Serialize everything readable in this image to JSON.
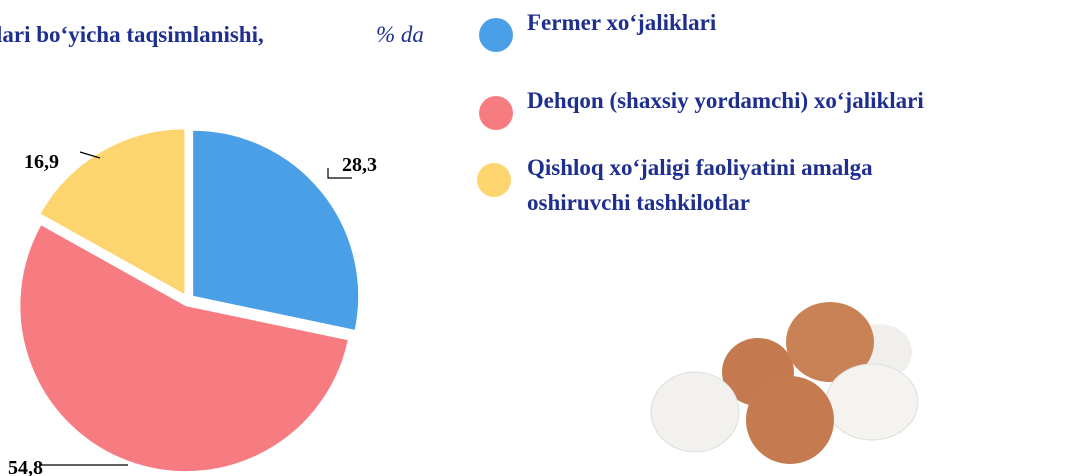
{
  "chart_data": {
    "type": "pie",
    "title": "lari bo‘yicha taqsimlanishi,",
    "unit": "% da",
    "categories": [
      "Fermer xo‘jaliklari",
      "Dehqon (shaxsiy yordamchi)  xo‘jaliklari",
      "Qishloq xo‘jaligi faoliyatini amalga oshiruvchi tashkilotlar"
    ],
    "values": [
      28.3,
      54.8,
      16.9
    ],
    "value_labels": [
      "28,3",
      "54,8",
      "16,9"
    ],
    "colors": [
      "#4b9fe6",
      "#f77c82",
      "#fdd56e"
    ]
  }
}
